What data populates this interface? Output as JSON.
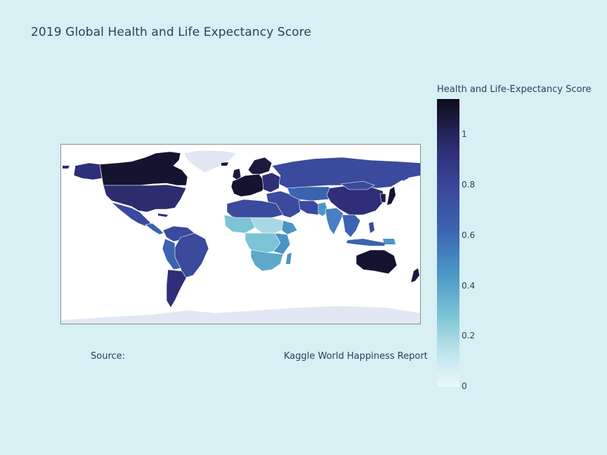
{
  "title": "2019 Global Health and Life Expectancy Score",
  "colorbar": {
    "title": "Health and Life-Expectancy Score",
    "ticks": [
      "0",
      "0.2",
      "0.4",
      "0.6",
      "0.8",
      "1"
    ],
    "range": [
      0,
      1.14
    ],
    "colors": [
      "#eaf8fb",
      "#7cc3d6",
      "#3b63b0",
      "#2f2e78",
      "#0b0b1f"
    ]
  },
  "annotations": {
    "source_label": "Source:",
    "source_text": "Kaggle World Happiness Report"
  }
}
